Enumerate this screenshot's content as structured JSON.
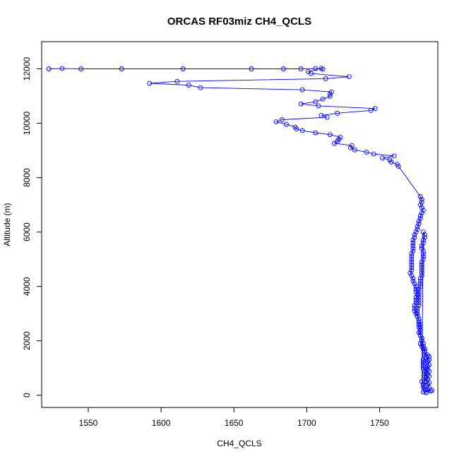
{
  "chart_data": {
    "type": "scatter",
    "title": "ORCAS RF03miz CH4_QCLS",
    "xlabel": "CH4_QCLS",
    "ylabel": "Altitude (m)",
    "xlim": [
      1518,
      1790
    ],
    "ylim": [
      -450,
      13000
    ],
    "xticks": [
      1550,
      1600,
      1650,
      1700,
      1750
    ],
    "yticks": [
      0,
      2000,
      4000,
      6000,
      8000,
      10000,
      12000
    ],
    "grid": false,
    "legend": "none",
    "series_color": "#0000ff",
    "series": [
      {
        "name": "CH4_QCLS",
        "points": [
          [
            1523,
            12000
          ],
          [
            1532,
            12010
          ],
          [
            1545,
            12000
          ],
          [
            1573,
            12000
          ],
          [
            1615,
            12000
          ],
          [
            1662,
            12000
          ],
          [
            1684,
            12000
          ],
          [
            1696,
            12000
          ],
          [
            1706,
            12010
          ],
          [
            1711,
            11990
          ],
          [
            1710,
            12020
          ],
          [
            1701,
            11900
          ],
          [
            1703,
            11830
          ],
          [
            1729,
            11710
          ],
          [
            1713,
            11640
          ],
          [
            1611,
            11540
          ],
          [
            1592,
            11470
          ],
          [
            1619,
            11400
          ],
          [
            1627,
            11310
          ],
          [
            1697,
            11230
          ],
          [
            1717,
            11150
          ],
          [
            1716,
            11070
          ],
          [
            1716,
            10990
          ],
          [
            1711,
            10890
          ],
          [
            1706,
            10790
          ],
          [
            1696,
            10710
          ],
          [
            1708,
            10640
          ],
          [
            1747,
            10540
          ],
          [
            1744,
            10470
          ],
          [
            1721,
            10370
          ],
          [
            1710,
            10290
          ],
          [
            1714,
            10220
          ],
          [
            1683,
            10130
          ],
          [
            1679,
            10050
          ],
          [
            1686,
            9960
          ],
          [
            1692,
            9860
          ],
          [
            1693,
            9790
          ],
          [
            1697,
            9730
          ],
          [
            1706,
            9650
          ],
          [
            1716,
            9580
          ],
          [
            1723,
            9490
          ],
          [
            1722,
            9410
          ],
          [
            1721,
            9340
          ],
          [
            1719,
            9260
          ],
          [
            1731,
            9180
          ],
          [
            1730,
            9100
          ],
          [
            1733,
            9020
          ],
          [
            1741,
            8940
          ],
          [
            1746,
            8870
          ],
          [
            1760,
            8800
          ],
          [
            1752,
            8720
          ],
          [
            1757,
            8650
          ],
          [
            1758,
            8570
          ],
          [
            1762,
            8490
          ],
          [
            1763,
            8420
          ],
          [
            1778,
            7300
          ],
          [
            1779,
            7200
          ],
          [
            1779,
            7100
          ],
          [
            1778,
            7000
          ],
          [
            1779,
            6900
          ],
          [
            1780,
            6800
          ],
          [
            1779,
            6700
          ],
          [
            1778,
            6600
          ],
          [
            1778,
            6500
          ],
          [
            1777,
            6400
          ],
          [
            1777,
            6300
          ],
          [
            1776,
            6200
          ],
          [
            1776,
            6100
          ],
          [
            1775,
            6000
          ],
          [
            1774,
            5900
          ],
          [
            1774,
            5800
          ],
          [
            1773,
            5700
          ],
          [
            1773,
            5600
          ],
          [
            1773,
            5500
          ],
          [
            1773,
            5400
          ],
          [
            1773,
            5300
          ],
          [
            1772,
            5200
          ],
          [
            1772,
            5100
          ],
          [
            1772,
            5000
          ],
          [
            1772,
            4900
          ],
          [
            1772,
            4800
          ],
          [
            1772,
            4700
          ],
          [
            1772,
            4600
          ],
          [
            1771,
            4500
          ],
          [
            1772,
            4400
          ],
          [
            1773,
            4300
          ],
          [
            1773,
            4200
          ],
          [
            1774,
            4100
          ],
          [
            1775,
            4000
          ],
          [
            1775,
            3900
          ],
          [
            1775,
            3800
          ],
          [
            1776,
            3700
          ],
          [
            1775,
            3600
          ],
          [
            1775,
            3500
          ],
          [
            1775,
            3400
          ],
          [
            1774,
            3300
          ],
          [
            1774,
            3200
          ],
          [
            1774,
            3100
          ],
          [
            1775,
            3000
          ],
          [
            1776,
            2900
          ],
          [
            1777,
            2800
          ],
          [
            1777,
            2700
          ],
          [
            1778,
            2600
          ],
          [
            1778,
            2500
          ],
          [
            1778,
            2400
          ],
          [
            1777,
            2300
          ],
          [
            1778,
            2200
          ],
          [
            1779,
            2100
          ],
          [
            1779,
            2000
          ],
          [
            1778,
            1900
          ],
          [
            1779,
            1800
          ],
          [
            1781,
            1700
          ],
          [
            1781,
            1600
          ],
          [
            1781,
            1500
          ],
          [
            1783,
            1480
          ],
          [
            1784,
            1420
          ],
          [
            1782,
            1360
          ],
          [
            1784,
            1300
          ],
          [
            1783,
            1240
          ],
          [
            1782,
            1180
          ],
          [
            1784,
            1120
          ],
          [
            1783,
            1060
          ],
          [
            1782,
            1000
          ],
          [
            1783,
            940
          ],
          [
            1784,
            880
          ],
          [
            1782,
            820
          ],
          [
            1783,
            760
          ],
          [
            1784,
            700
          ],
          [
            1782,
            640
          ],
          [
            1783,
            580
          ],
          [
            1782,
            520
          ],
          [
            1784,
            460
          ],
          [
            1783,
            400
          ],
          [
            1782,
            340
          ],
          [
            1784,
            280
          ],
          [
            1783,
            220
          ],
          [
            1785,
            160
          ],
          [
            1782,
            110
          ],
          [
            1786,
            180
          ],
          [
            1780,
            120
          ],
          [
            1779,
            500
          ],
          [
            1780,
            6000
          ],
          [
            1781,
            5900
          ],
          [
            1781,
            5800
          ],
          [
            1780,
            5700
          ],
          [
            1780,
            5600
          ],
          [
            1779,
            5500
          ],
          [
            1779,
            5400
          ],
          [
            1780,
            5300
          ],
          [
            1780,
            5200
          ],
          [
            1780,
            5100
          ],
          [
            1780,
            5000
          ],
          [
            1779,
            4900
          ],
          [
            1779,
            4800
          ],
          [
            1779,
            4700
          ],
          [
            1779,
            4600
          ],
          [
            1779,
            4500
          ],
          [
            1779,
            4400
          ],
          [
            1778,
            4300
          ],
          [
            1778,
            4200
          ],
          [
            1778,
            4100
          ],
          [
            1778,
            4000
          ],
          [
            1777,
            3900
          ],
          [
            1777,
            3800
          ],
          [
            1777,
            3700
          ],
          [
            1777,
            3600
          ],
          [
            1777,
            3500
          ],
          [
            1777,
            3400
          ],
          [
            1777,
            3300
          ],
          [
            1776,
            3200
          ],
          [
            1776,
            3100
          ],
          [
            1776,
            3000
          ],
          [
            1776,
            2900
          ],
          [
            1777,
            2800
          ],
          [
            1777,
            2700
          ],
          [
            1777,
            2600
          ],
          [
            1777,
            2500
          ],
          [
            1778,
            2400
          ],
          [
            1778,
            2300
          ],
          [
            1778,
            2200
          ],
          [
            1779,
            2100
          ],
          [
            1779,
            2000
          ],
          [
            1780,
            1900
          ],
          [
            1780,
            1800
          ],
          [
            1780,
            1700
          ],
          [
            1781,
            1600
          ],
          [
            1781,
            1500
          ],
          [
            1781,
            1400
          ],
          [
            1780,
            1300
          ],
          [
            1780,
            1200
          ],
          [
            1780,
            1100
          ],
          [
            1780,
            1000
          ],
          [
            1781,
            900
          ],
          [
            1781,
            800
          ],
          [
            1781,
            700
          ],
          [
            1781,
            600
          ],
          [
            1781,
            500
          ],
          [
            1780,
            400
          ],
          [
            1780,
            300
          ],
          [
            1781,
            200
          ],
          [
            1782,
            100
          ]
        ]
      }
    ]
  }
}
